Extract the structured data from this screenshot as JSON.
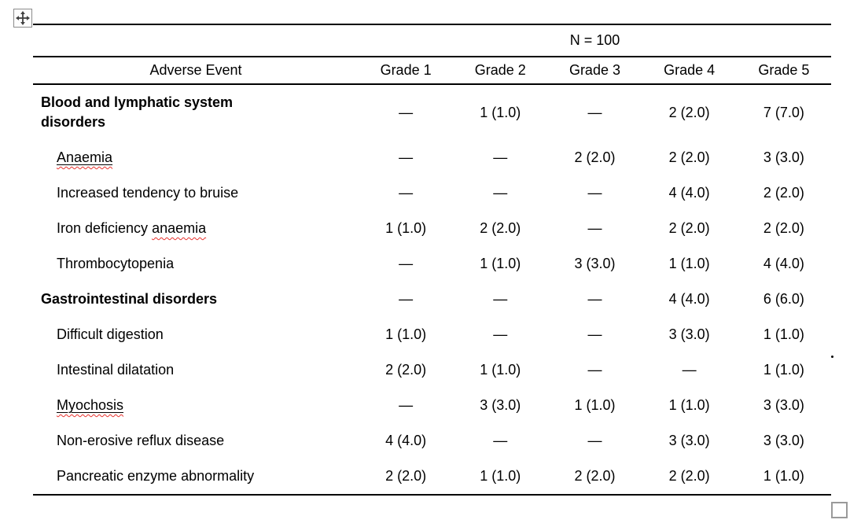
{
  "table": {
    "n_header": "N = 100",
    "columns": [
      "Adverse Event",
      "Grade 1",
      "Grade 2",
      "Grade 3",
      "Grade 4",
      "Grade 5"
    ],
    "rows": [
      {
        "label": "Blood and lymphatic system disorders",
        "bold": true,
        "indent": false,
        "misspelled_word": null,
        "underlined": false,
        "values": [
          "—",
          "1 (1.0)",
          "—",
          "2 (2.0)",
          "7 (7.0)"
        ]
      },
      {
        "label": "Anaemia",
        "bold": false,
        "indent": true,
        "misspelled_word": "Anaemia",
        "underlined": true,
        "values": [
          "—",
          "—",
          "2 (2.0)",
          "2 (2.0)",
          "3 (3.0)"
        ]
      },
      {
        "label": "Increased tendency to bruise",
        "bold": false,
        "indent": true,
        "misspelled_word": null,
        "underlined": false,
        "values": [
          "—",
          "—",
          "—",
          "4 (4.0)",
          "2 (2.0)"
        ]
      },
      {
        "label": "Iron deficiency anaemia",
        "bold": false,
        "indent": true,
        "misspelled_word": "anaemia",
        "underlined": false,
        "values": [
          "1 (1.0)",
          "2 (2.0)",
          "—",
          "2 (2.0)",
          "2 (2.0)"
        ]
      },
      {
        "label": "Thrombocytopenia",
        "bold": false,
        "indent": true,
        "misspelled_word": null,
        "underlined": false,
        "values": [
          "—",
          "1 (1.0)",
          "3 (3.0)",
          "1 (1.0)",
          "4 (4.0)"
        ]
      },
      {
        "label": "Gastrointestinal disorders",
        "bold": true,
        "indent": false,
        "misspelled_word": null,
        "underlined": false,
        "values": [
          "—",
          "—",
          "—",
          "4 (4.0)",
          "6 (6.0)"
        ]
      },
      {
        "label": "Difficult digestion",
        "bold": false,
        "indent": true,
        "misspelled_word": null,
        "underlined": false,
        "values": [
          "1 (1.0)",
          "—",
          "—",
          "3 (3.0)",
          "1 (1.0)"
        ]
      },
      {
        "label": "Intestinal dilatation",
        "bold": false,
        "indent": true,
        "misspelled_word": null,
        "underlined": false,
        "values": [
          "2 (2.0)",
          "1 (1.0)",
          "—",
          "—",
          "1 (1.0)"
        ]
      },
      {
        "label": "Myochosis",
        "bold": false,
        "indent": true,
        "misspelled_word": "Myochosis",
        "underlined": true,
        "values": [
          "—",
          "3 (3.0)",
          "1 (1.0)",
          "1 (1.0)",
          "3 (3.0)"
        ]
      },
      {
        "label": "Non-erosive reflux disease",
        "bold": false,
        "indent": true,
        "misspelled_word": null,
        "underlined": false,
        "values": [
          "4 (4.0)",
          "—",
          "—",
          "3 (3.0)",
          "3 (3.0)"
        ]
      },
      {
        "label": "Pancreatic enzyme abnormality",
        "bold": false,
        "indent": true,
        "misspelled_word": null,
        "underlined": false,
        "values": [
          "2 (2.0)",
          "1 (1.0)",
          "2 (2.0)",
          "2 (2.0)",
          "1 (1.0)"
        ]
      }
    ]
  },
  "icons": {
    "move_handle": "four-arrow-move-cross",
    "resize_handle": "square-resize-box"
  },
  "colors": {
    "text": "#000000",
    "border": "#000000",
    "squiggle_red": "#e8322e",
    "handle_border": "#8c8c8c",
    "handle_icon": "#404040"
  }
}
